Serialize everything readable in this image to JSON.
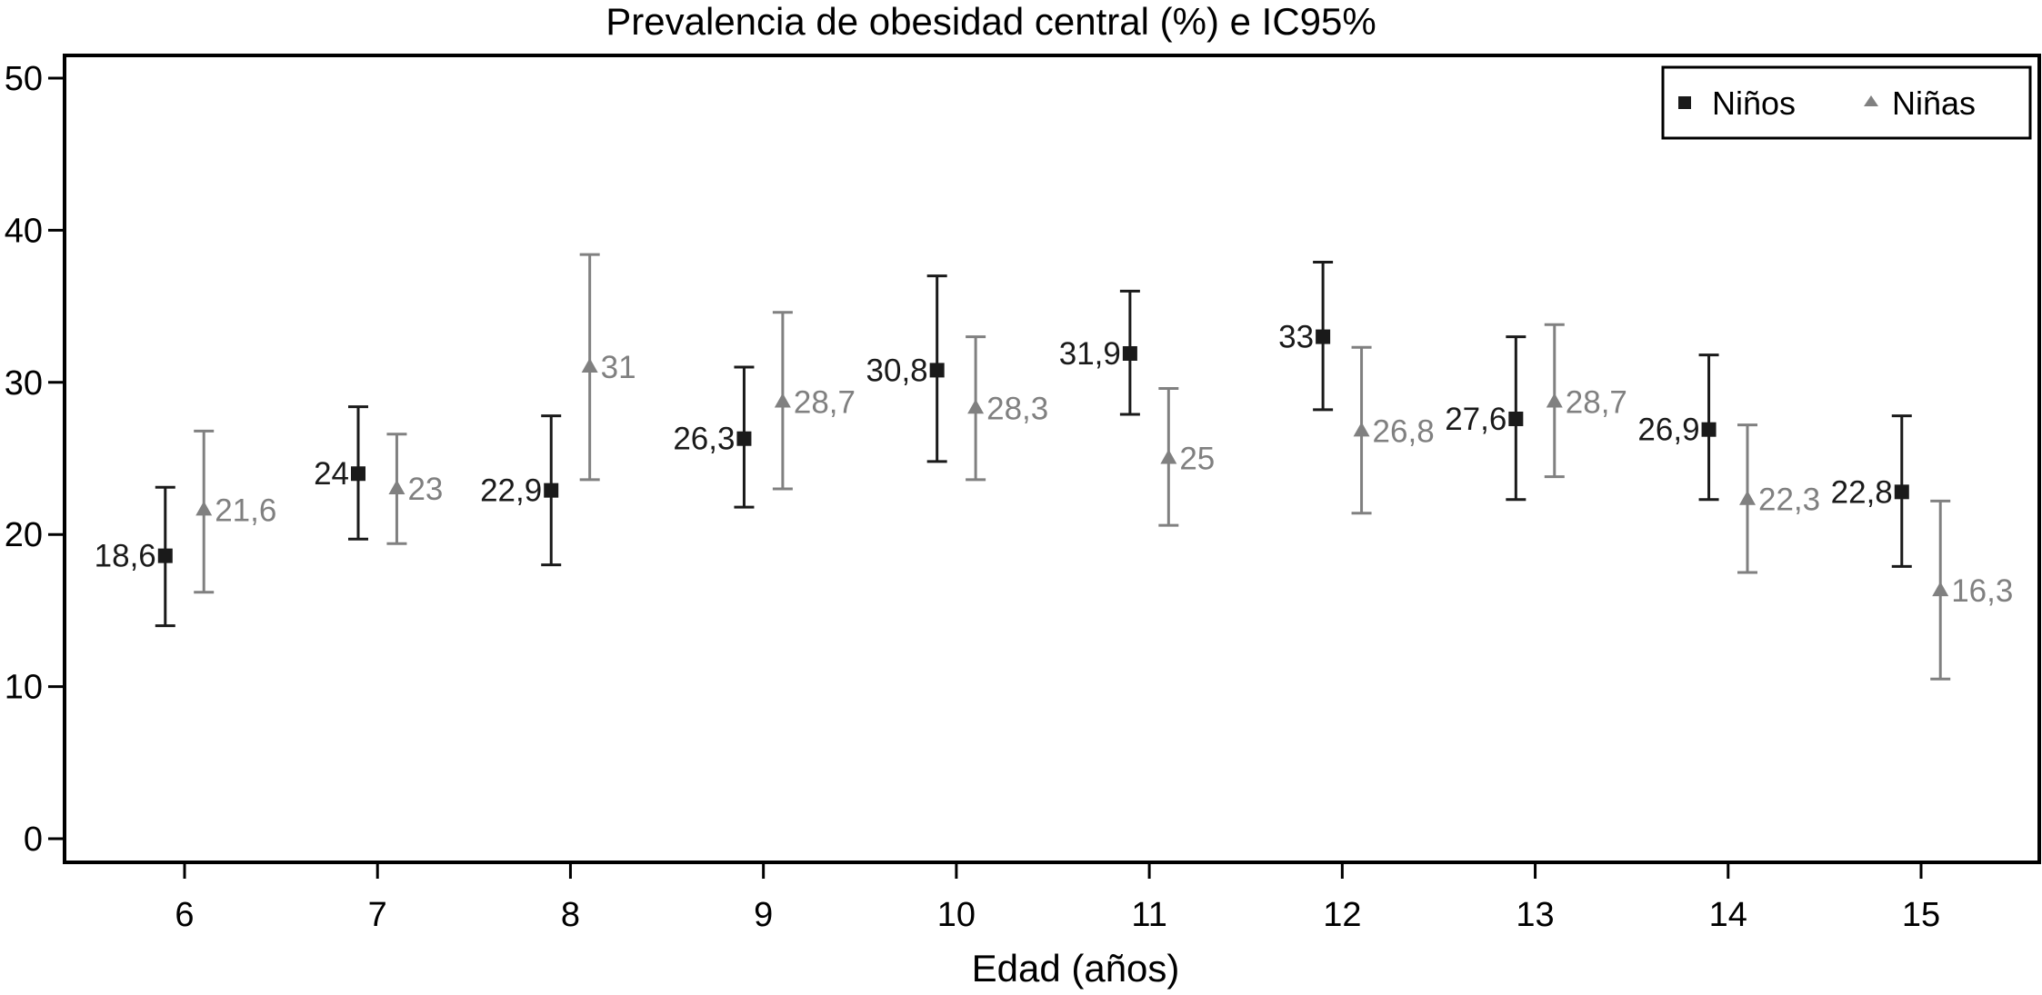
{
  "chart_data": {
    "type": "scatter",
    "title": "Prevalencia de obesidad central (%) e IC95%",
    "xlabel": "Edad (años)",
    "ylabel": "",
    "x": [
      6,
      7,
      8,
      9,
      10,
      11,
      12,
      13,
      14,
      15
    ],
    "xticks": [
      "6",
      "7",
      "8",
      "9",
      "10",
      "11",
      "12",
      "13",
      "14",
      "15"
    ],
    "xlim": [
      5.38,
      15.62
    ],
    "ylim": [
      -1.6,
      51.5
    ],
    "yticks": [
      0,
      10,
      20,
      30,
      40,
      50
    ],
    "ytick_labels": [
      "0",
      "10",
      "20",
      "30",
      "40",
      "50"
    ],
    "grid": false,
    "legend_position": "top-right",
    "series": [
      {
        "name": "Niños",
        "marker": "square",
        "color": "#1a1a1a",
        "offset": -0.1,
        "values": [
          18.6,
          24,
          22.9,
          26.3,
          30.8,
          31.9,
          33,
          27.6,
          26.9,
          22.8
        ],
        "labels": [
          "18,6",
          "24",
          "22,9",
          "26,3",
          "30,8",
          "31,9",
          "33",
          "27,6",
          "26,9",
          "22,8"
        ],
        "ci_low": [
          14.0,
          19.7,
          18.0,
          21.8,
          24.8,
          27.9,
          28.2,
          22.3,
          22.3,
          17.9
        ],
        "ci_high": [
          23.1,
          28.4,
          27.8,
          31.0,
          37.0,
          36.0,
          37.9,
          33.0,
          31.8,
          27.8
        ],
        "label_side": "left"
      },
      {
        "name": "Niñas",
        "marker": "triangle",
        "color": "#808080",
        "offset": 0.1,
        "values": [
          21.6,
          23,
          31,
          28.7,
          28.3,
          25,
          26.8,
          28.7,
          22.3,
          16.3
        ],
        "labels": [
          "21,6",
          "23",
          "31",
          "28,7",
          "28,3",
          "25",
          "26,8",
          "28,7",
          "22,3",
          "16,3"
        ],
        "ci_low": [
          16.2,
          19.4,
          23.6,
          23.0,
          23.6,
          20.6,
          21.4,
          23.8,
          17.5,
          10.5
        ],
        "ci_high": [
          26.8,
          26.6,
          38.4,
          34.6,
          33.0,
          29.6,
          32.3,
          33.8,
          27.2,
          22.2
        ],
        "label_side": "right"
      }
    ],
    "legend": [
      {
        "label": "Niños",
        "marker": "square",
        "color": "#1a1a1a"
      },
      {
        "label": "Niñas",
        "marker": "triangle",
        "color": "#808080"
      }
    ]
  }
}
